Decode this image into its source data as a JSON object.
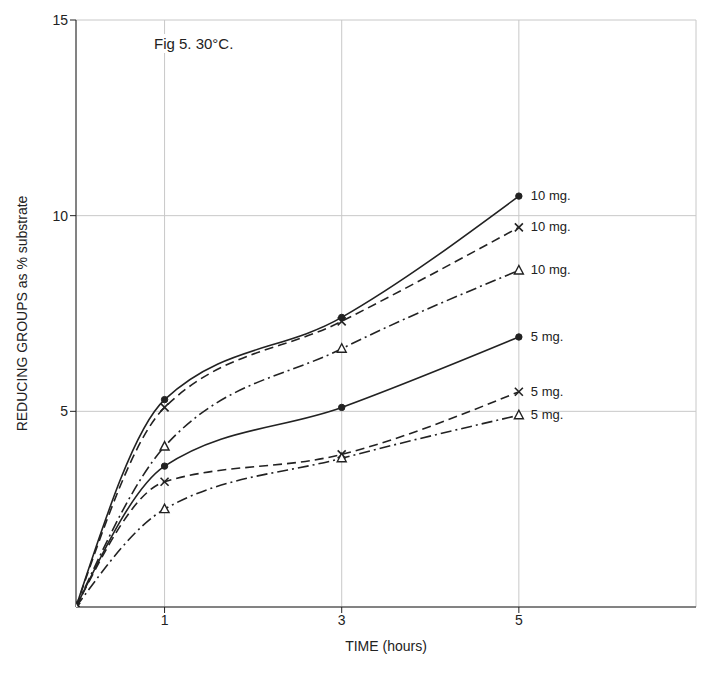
{
  "chart_data": {
    "type": "line",
    "title": "Fig 5. 30°C.",
    "x_label": "TIME (hours)",
    "y_label": "REDUCING GROUPS as % substrate",
    "x": [
      0,
      1,
      3,
      5
    ],
    "xlim": [
      0,
      7
    ],
    "xticks": [
      1,
      3,
      5
    ],
    "ylim": [
      0,
      15
    ],
    "yticks": [
      5,
      10,
      15
    ],
    "grid": true,
    "series": [
      {
        "name": "10 mg.",
        "color": "#222222",
        "marker": "circle",
        "line_style": "solid",
        "values": [
          0,
          5.3,
          7.4,
          10.5
        ]
      },
      {
        "name": "10 mg.",
        "color": "#222222",
        "marker": "x",
        "line_style": "dashed",
        "values": [
          0,
          5.1,
          7.3,
          9.7
        ]
      },
      {
        "name": "10 mg.",
        "color": "#222222",
        "marker": "triangle",
        "line_style": "dashdot",
        "values": [
          0,
          4.1,
          6.6,
          8.6
        ]
      },
      {
        "name": "5 mg.",
        "color": "#222222",
        "marker": "circle",
        "line_style": "solid",
        "values": [
          0,
          3.6,
          5.1,
          6.9
        ]
      },
      {
        "name": "5 mg.",
        "color": "#222222",
        "marker": "x",
        "line_style": "dashed",
        "values": [
          0,
          3.2,
          3.9,
          5.5
        ]
      },
      {
        "name": "5 mg.",
        "color": "#222222",
        "marker": "triangle",
        "line_style": "dashdot",
        "values": [
          0,
          2.5,
          3.8,
          4.9
        ]
      }
    ]
  }
}
